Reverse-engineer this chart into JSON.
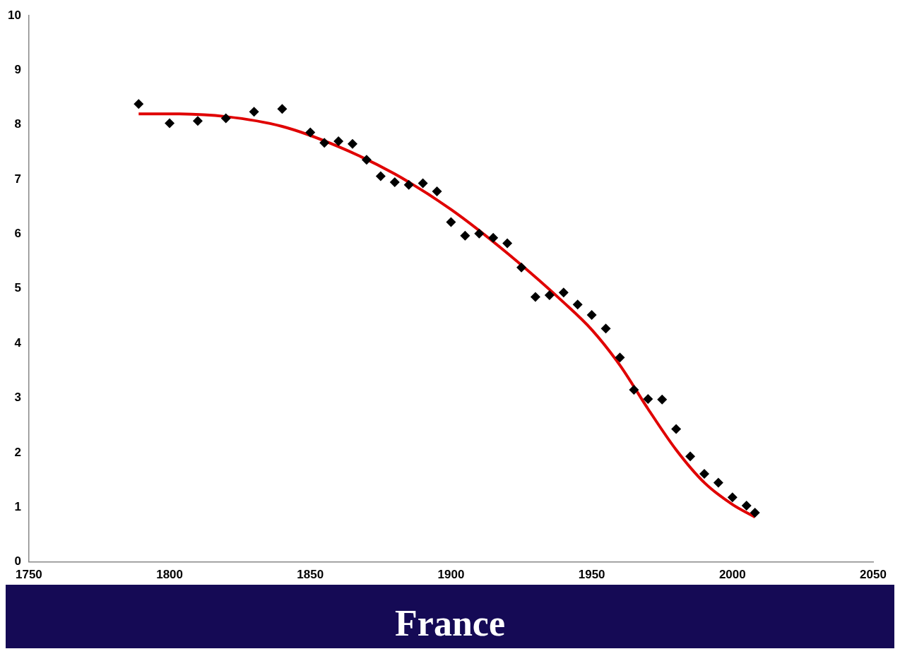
{
  "chart_data": {
    "type": "scatter",
    "title": "France",
    "xlim": [
      1750,
      2050
    ],
    "xticks": [
      1750,
      1800,
      1850,
      1900,
      1950,
      2000,
      2050
    ],
    "ylim": [
      0,
      10
    ],
    "yticks": [
      0,
      1,
      2,
      3,
      4,
      5,
      6,
      7,
      8,
      9,
      10
    ],
    "grid": false,
    "legend": false,
    "marker": "diamond",
    "series": [
      {
        "color": "#000000",
        "x": [
          1789,
          1800,
          1810,
          1820,
          1830,
          1840,
          1850,
          1855,
          1860,
          1865,
          1870,
          1875,
          1880,
          1885,
          1890,
          1895,
          1900,
          1905,
          1910,
          1915,
          1920,
          1925,
          1930,
          1935,
          1940,
          1945,
          1950,
          1955,
          1960,
          1965,
          1970,
          1975,
          1980,
          1985,
          1990,
          1995,
          2000,
          2005,
          2008
        ],
        "values": [
          8.38,
          8.03,
          8.07,
          8.12,
          8.24,
          8.29,
          7.86,
          7.67,
          7.7,
          7.65,
          7.36,
          7.06,
          6.95,
          6.9,
          6.93,
          6.78,
          6.22,
          5.97,
          6.01,
          5.93,
          5.83,
          5.39,
          4.85,
          4.88,
          4.93,
          4.71,
          4.52,
          4.27,
          3.74,
          3.15,
          2.98,
          2.97,
          2.43,
          1.93,
          1.61,
          1.45,
          1.18,
          1.03,
          0.9
        ]
      },
      {
        "type": "line",
        "color": "#e00000",
        "line_style": "solid",
        "marker": "none",
        "x": [
          1789,
          1800,
          1820,
          1840,
          1860,
          1880,
          1900,
          1920,
          1940,
          1950,
          1960,
          1970,
          1980,
          1990,
          2000,
          2008
        ],
        "values": [
          8.2,
          8.2,
          8.15,
          7.97,
          7.6,
          7.1,
          6.45,
          5.65,
          4.75,
          4.25,
          3.6,
          2.8,
          2.05,
          1.45,
          1.05,
          0.82
        ]
      }
    ]
  }
}
